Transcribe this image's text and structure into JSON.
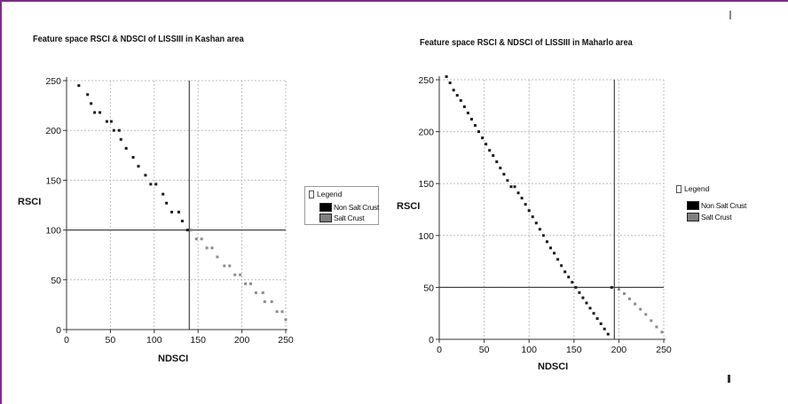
{
  "chart_data": [
    {
      "type": "scatter",
      "title": "Feature space RSCI & NDSCI of LISSIII in Kashan area",
      "xlabel": "NDSCI",
      "ylabel": "RSCI",
      "xlim": [
        0,
        250
      ],
      "ylim": [
        0,
        250
      ],
      "xticks": [
        0,
        50,
        100,
        150,
        200,
        250
      ],
      "yticks": [
        0,
        50,
        100,
        150,
        200,
        250
      ],
      "grid": true,
      "threshold_x": 140,
      "threshold_y": 100,
      "legend": {
        "title": "Legend",
        "position": "right",
        "entries": [
          {
            "label": "Non Salt Crust",
            "color": "#000000"
          },
          {
            "label": "Salt Crust",
            "color": "#7f7f7f"
          }
        ]
      },
      "series": [
        {
          "name": "Non Salt Crust",
          "color": "#1a1a1a",
          "points": [
            [
              14,
              245
            ],
            [
              24,
              236
            ],
            [
              28,
              227
            ],
            [
              32,
              218
            ],
            [
              38,
              218
            ],
            [
              46,
              209
            ],
            [
              51,
              209
            ],
            [
              54,
              200
            ],
            [
              60,
              200
            ],
            [
              62,
              191
            ],
            [
              68,
              182
            ],
            [
              76,
              173
            ],
            [
              82,
              164
            ],
            [
              90,
              155
            ],
            [
              96,
              146
            ],
            [
              102,
              146
            ],
            [
              110,
              136
            ],
            [
              114,
              127
            ],
            [
              120,
              118
            ],
            [
              128,
              118
            ],
            [
              132,
              109
            ],
            [
              138,
              100
            ]
          ]
        },
        {
          "name": "Salt Crust",
          "color": "#8c8c8c",
          "points": [
            [
              142,
              100
            ],
            [
              148,
              91
            ],
            [
              154,
              91
            ],
            [
              160,
              82
            ],
            [
              166,
              82
            ],
            [
              172,
              73
            ],
            [
              180,
              64
            ],
            [
              186,
              64
            ],
            [
              192,
              55
            ],
            [
              198,
              55
            ],
            [
              204,
              46
            ],
            [
              210,
              46
            ],
            [
              216,
              37
            ],
            [
              224,
              37
            ],
            [
              226,
              28
            ],
            [
              234,
              28
            ],
            [
              240,
              18
            ],
            [
              246,
              18
            ],
            [
              250,
              10
            ]
          ]
        }
      ]
    },
    {
      "type": "scatter",
      "title": "Feature space RSCI & NDSCI of LISSIII in Maharlo area",
      "xlabel": "NDSCI",
      "ylabel": "RSCI",
      "xlim": [
        0,
        250
      ],
      "ylim": [
        0,
        250
      ],
      "xticks": [
        0,
        50,
        100,
        150,
        200,
        250
      ],
      "yticks": [
        0,
        50,
        100,
        150,
        200,
        250
      ],
      "grid": true,
      "threshold_x": 195,
      "threshold_y": 50,
      "legend": {
        "title": "Legend",
        "position": "right",
        "entries": [
          {
            "label": "Non Salt Crust",
            "color": "#000000"
          },
          {
            "label": "Salt Crust",
            "color": "#7f7f7f"
          }
        ]
      },
      "series": [
        {
          "name": "Non Salt Crust",
          "color": "#1a1a1a",
          "points": [
            [
              8,
              253
            ],
            [
              12,
              247
            ],
            [
              16,
              240
            ],
            [
              20,
              235
            ],
            [
              24,
              230
            ],
            [
              28,
              224
            ],
            [
              32,
              218
            ],
            [
              36,
              212
            ],
            [
              40,
              206
            ],
            [
              44,
              200
            ],
            [
              48,
              194
            ],
            [
              52,
              188
            ],
            [
              56,
              182
            ],
            [
              60,
              177
            ],
            [
              64,
              171
            ],
            [
              68,
              165
            ],
            [
              72,
              159
            ],
            [
              76,
              153
            ],
            [
              80,
              147
            ],
            [
              84,
              147
            ],
            [
              88,
              141
            ],
            [
              92,
              136
            ],
            [
              96,
              130
            ],
            [
              100,
              124
            ],
            [
              104,
              118
            ],
            [
              108,
              112
            ],
            [
              112,
              106
            ],
            [
              116,
              100
            ],
            [
              120,
              94
            ],
            [
              124,
              88
            ],
            [
              128,
              83
            ],
            [
              132,
              77
            ],
            [
              136,
              71
            ],
            [
              140,
              65
            ],
            [
              144,
              60
            ],
            [
              148,
              55
            ],
            [
              152,
              50
            ],
            [
              156,
              45
            ],
            [
              160,
              40
            ],
            [
              164,
              35
            ],
            [
              168,
              30
            ],
            [
              172,
              25
            ],
            [
              176,
              20
            ],
            [
              180,
              15
            ],
            [
              184,
              10
            ],
            [
              188,
              5
            ],
            [
              192,
              50
            ]
          ]
        },
        {
          "name": "Salt Crust",
          "color": "#8c8c8c",
          "points": [
            [
              200,
              48
            ],
            [
              206,
              44
            ],
            [
              212,
              39
            ],
            [
              218,
              34
            ],
            [
              224,
              29
            ],
            [
              230,
              24
            ],
            [
              236,
              18
            ],
            [
              242,
              12
            ],
            [
              248,
              7
            ]
          ]
        }
      ]
    }
  ]
}
